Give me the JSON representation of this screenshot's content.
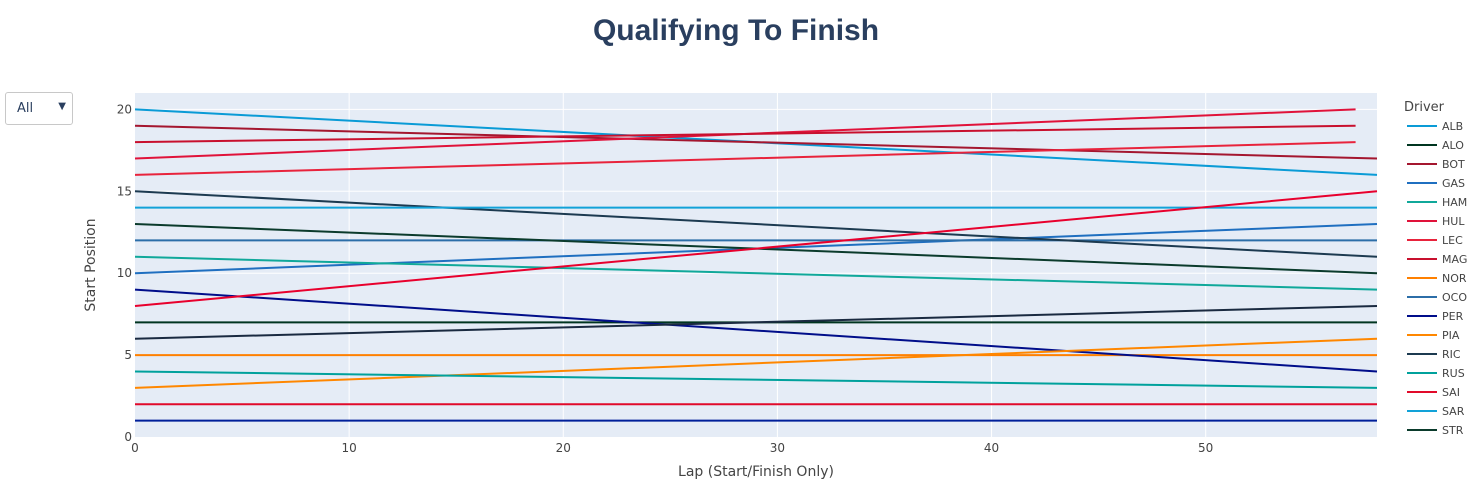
{
  "title": "Qualifying To Finish",
  "dropdown": {
    "selected": "All",
    "arrow": "▼"
  },
  "chart_data": {
    "type": "line",
    "title": "Qualifying To Finish",
    "xlabel": "Lap (Start/Finish Only)",
    "ylabel": "Start Position",
    "xlim": [
      0,
      58
    ],
    "ylim": [
      0,
      21
    ],
    "xticks": [
      0,
      10,
      20,
      30,
      40,
      50
    ],
    "yticks": [
      0,
      5,
      10,
      15,
      20
    ],
    "grid": true,
    "legend_title": "Driver",
    "legend_position": "right",
    "series": [
      {
        "name": "ALB",
        "color": "#0a9bd6",
        "x": [
          0,
          58
        ],
        "y": [
          20,
          16
        ]
      },
      {
        "name": "ALO",
        "color": "#003520",
        "x": [
          0,
          58
        ],
        "y": [
          7,
          7
        ]
      },
      {
        "name": "BOT",
        "color": "#a4162f",
        "x": [
          0,
          58
        ],
        "y": [
          19,
          17
        ]
      },
      {
        "name": "GAS",
        "color": "#1f6fc0",
        "x": [
          0,
          58
        ],
        "y": [
          10,
          13
        ]
      },
      {
        "name": "HAM",
        "color": "#10a89a",
        "x": [
          0,
          58
        ],
        "y": [
          11,
          9
        ]
      },
      {
        "name": "HUL",
        "color": "#e0123a",
        "x": [
          0,
          57
        ],
        "y": [
          17,
          20
        ]
      },
      {
        "name": "LEC",
        "color": "#e8233c",
        "x": [
          0,
          57
        ],
        "y": [
          16,
          18
        ]
      },
      {
        "name": "MAG",
        "color": "#c8102e",
        "x": [
          0,
          57
        ],
        "y": [
          18,
          19
        ]
      },
      {
        "name": "NOR",
        "color": "#ff8000",
        "x": [
          0,
          58
        ],
        "y": [
          5,
          5
        ]
      },
      {
        "name": "OCO",
        "color": "#2c6ea8",
        "x": [
          0,
          58
        ],
        "y": [
          12,
          12
        ]
      },
      {
        "name": "PER",
        "color": "#000d8a",
        "x": [
          0,
          58
        ],
        "y": [
          9,
          4
        ]
      },
      {
        "name": "PIA",
        "color": "#ff8700",
        "x": [
          0,
          58
        ],
        "y": [
          3,
          6
        ]
      },
      {
        "name": "RIC",
        "color": "#1c3a50",
        "x": [
          0,
          58
        ],
        "y": [
          15,
          11
        ]
      },
      {
        "name": "RUS",
        "color": "#00a19c",
        "x": [
          0,
          58
        ],
        "y": [
          4,
          3
        ]
      },
      {
        "name": "SAI",
        "color": "#e10a2a",
        "x": [
          0,
          58
        ],
        "y": [
          2,
          2
        ]
      },
      {
        "name": "SAR",
        "color": "#12a2d8",
        "x": [
          0,
          58
        ],
        "y": [
          14,
          14
        ]
      },
      {
        "name": "STR",
        "color": "#0b3b2c",
        "x": [
          0,
          58
        ],
        "y": [
          13,
          10
        ]
      },
      {
        "color": "#e8002d",
        "x": [
          0,
          58
        ],
        "y": [
          8,
          15
        ]
      },
      {
        "color": "#1a2a40",
        "x": [
          0,
          58
        ],
        "y": [
          6,
          8
        ]
      },
      {
        "color": "#001f9a",
        "x": [
          0,
          58
        ],
        "y": [
          1,
          1
        ]
      }
    ]
  }
}
